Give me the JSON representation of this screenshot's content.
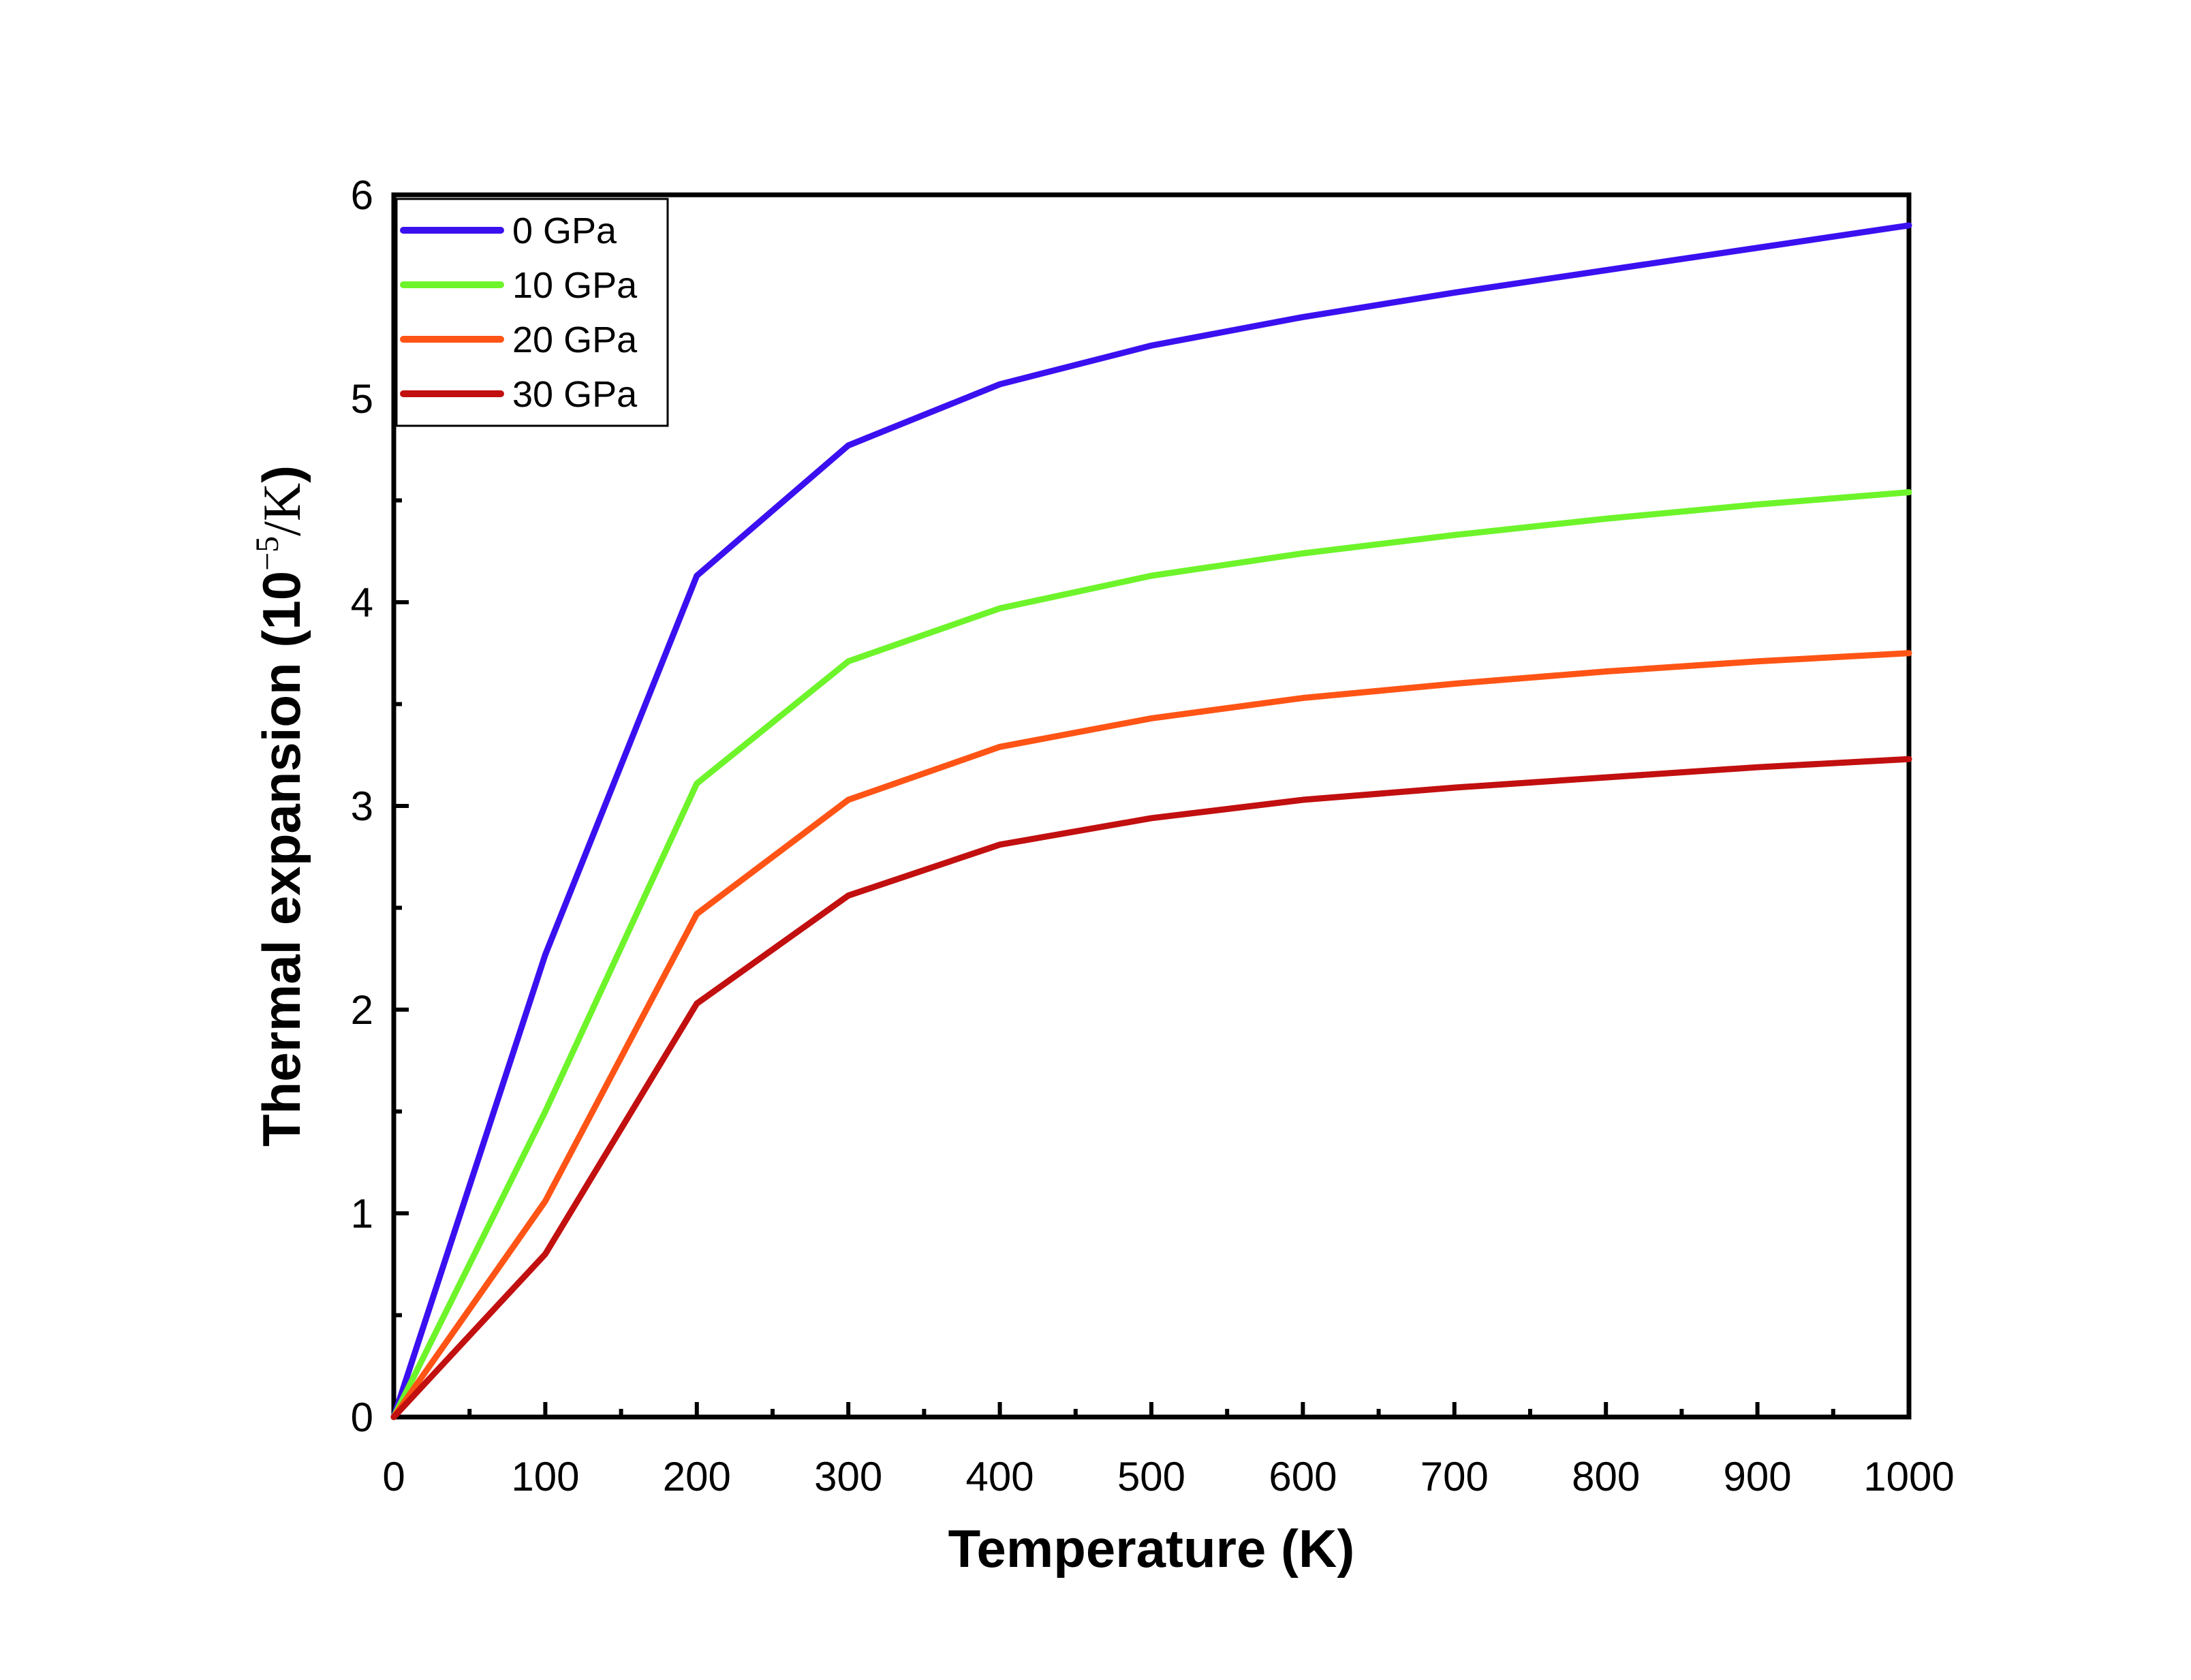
{
  "chart_data": {
    "type": "line",
    "title": "",
    "xlabel": "Temperature (K)",
    "ylabel": {
      "prefix": "Thermal expansion (10",
      "exponent": "−5",
      "unit": "/K",
      "suffix": ")"
    },
    "xlim": [
      0,
      1000
    ],
    "ylim": [
      0,
      6
    ],
    "xticks": [
      "0",
      "100",
      "200",
      "300",
      "400",
      "500",
      "600",
      "700",
      "800",
      "900",
      "1000"
    ],
    "yticks": [
      "0",
      "1",
      "2",
      "3",
      "4",
      "5",
      "6"
    ],
    "x": [
      0,
      100,
      200,
      300,
      400,
      500,
      600,
      700,
      800,
      900,
      1000
    ],
    "series": [
      {
        "name": "0 GPa",
        "color": "#3b10f0",
        "values": [
          0.0,
          2.27,
          4.13,
          4.77,
          5.07,
          5.26,
          5.4,
          5.52,
          5.63,
          5.74,
          5.85
        ]
      },
      {
        "name": "10 GPa",
        "color": "#6ef42a",
        "values": [
          0.0,
          1.5,
          3.11,
          3.71,
          3.97,
          4.13,
          4.24,
          4.33,
          4.41,
          4.48,
          4.54
        ]
      },
      {
        "name": "20 GPa",
        "color": "#ff5415",
        "values": [
          0.0,
          1.06,
          2.47,
          3.03,
          3.29,
          3.43,
          3.53,
          3.6,
          3.66,
          3.71,
          3.75
        ]
      },
      {
        "name": "30 GPa",
        "color": "#c20f0f",
        "values": [
          0.0,
          0.8,
          2.03,
          2.56,
          2.81,
          2.94,
          3.03,
          3.09,
          3.14,
          3.19,
          3.23
        ]
      }
    ],
    "grid": false,
    "legend_position": "top-left"
  }
}
